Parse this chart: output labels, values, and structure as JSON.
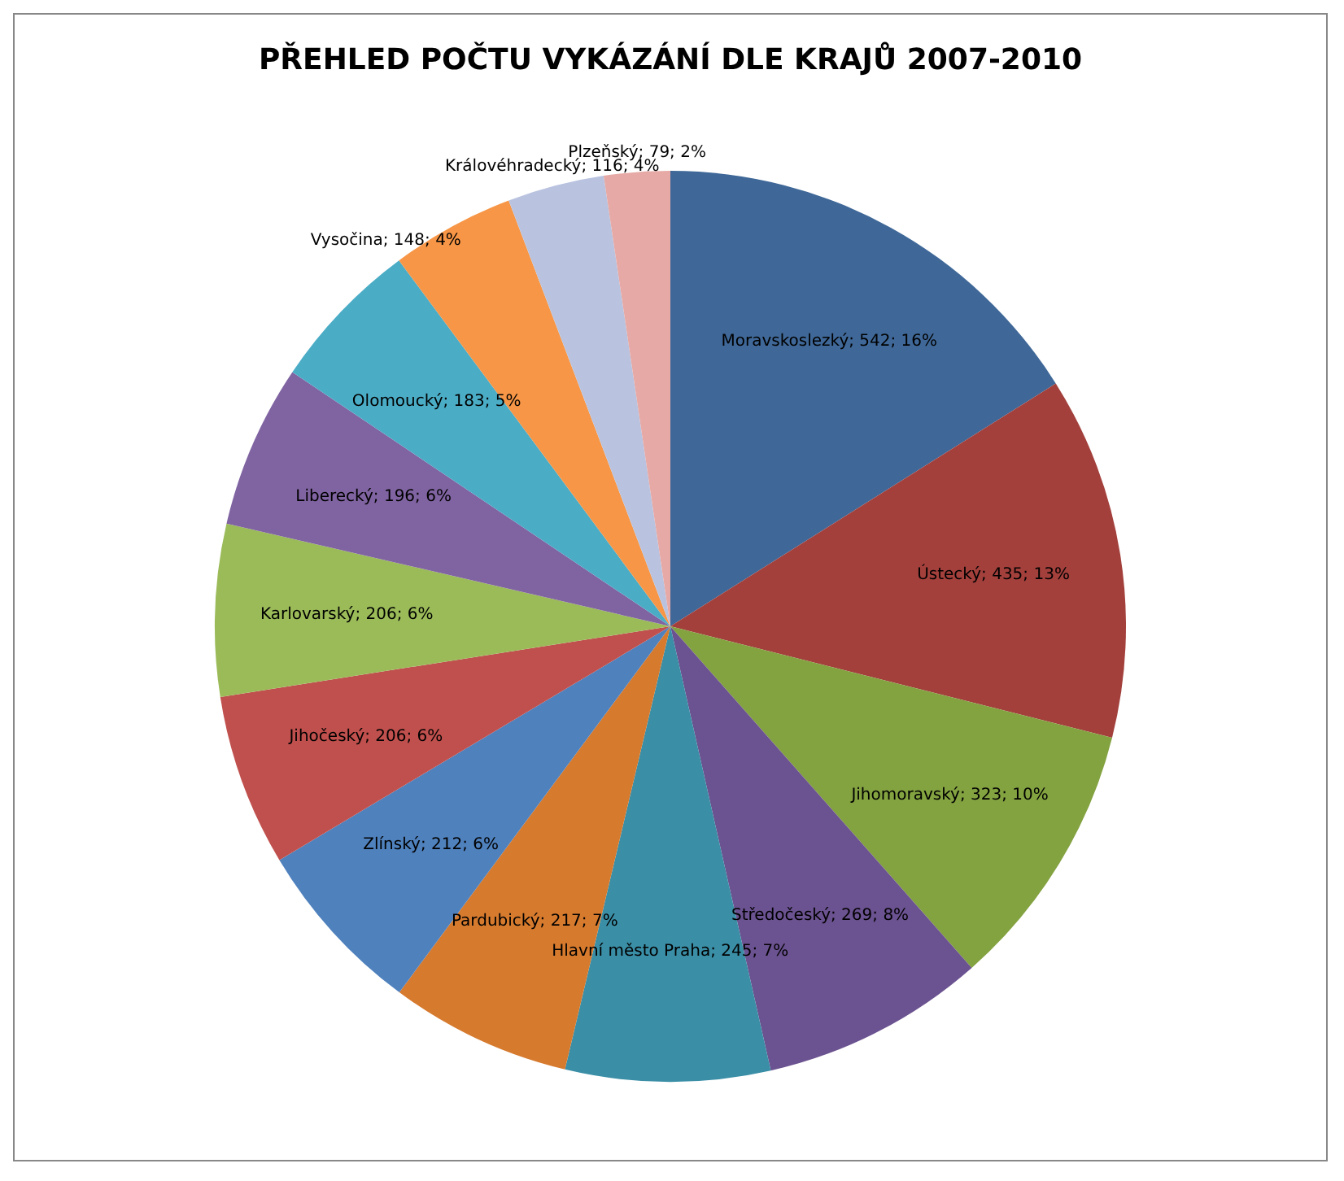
{
  "chart_data": {
    "type": "pie",
    "title": "PŘEHLED POČTU VYKÁZÁNÍ DLE KRAJŮ 2007-2010",
    "categories": [
      "Moravskoslezký",
      "Ústecký",
      "Jihomoravský",
      "Středočeský",
      "Hlavní město Praha",
      "Pardubický",
      "Zlínský",
      "Jihočeský",
      "Karlovarský",
      "Liberecký",
      "Olomoucký",
      "Vysočina",
      "Královéhradecký",
      "Plzeňský"
    ],
    "values": [
      542,
      435,
      323,
      269,
      245,
      217,
      212,
      206,
      206,
      196,
      183,
      148,
      116,
      79
    ],
    "value_labels": [
      "542; 16%",
      "435; 13%",
      "323; 10%",
      "269; 8%",
      "245; 7%",
      "217; 7%",
      "212; 6%",
      "206; 6%",
      "206; 6%",
      "196; 6%",
      "183; 5%",
      "148; 4%",
      "116; 4%",
      "79; 2%"
    ],
    "colors": [
      "#3f6898",
      "#a3403c",
      "#83a240",
      "#6b5290",
      "#3a8ea6",
      "#d67a2e",
      "#4f81bd",
      "#c0504d",
      "#9bbb59",
      "#8064a2",
      "#4bacc6",
      "#f79646",
      "#b9c3e0",
      "#e6a9a5"
    ],
    "legend": false
  }
}
